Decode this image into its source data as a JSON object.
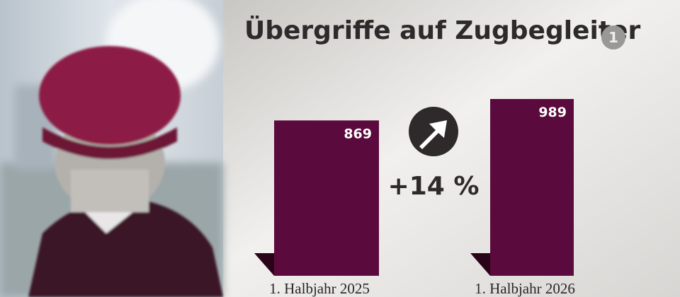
{
  "chart_data": {
    "type": "bar",
    "title": "Übergriffe auf Zugbegleiter",
    "logo": "1",
    "categories": [
      "1. Halbjahr 2025",
      "1. Halbjahr 2026"
    ],
    "values": [
      869,
      989
    ],
    "color": "#5a0a3c",
    "annotation": "+14 %"
  }
}
